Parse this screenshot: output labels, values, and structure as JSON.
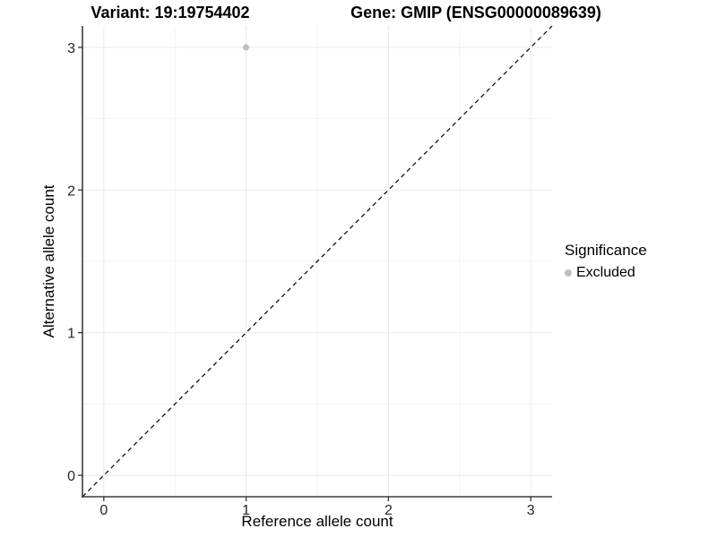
{
  "titles": {
    "variant": "Variant: 19:19754402",
    "gene": "Gene: GMIP (ENSG00000089639)"
  },
  "axes": {
    "x_label": "Reference allele count",
    "y_label": "Alternative allele count",
    "x_tick_labels": [
      "0",
      "1",
      "2",
      "3"
    ],
    "y_tick_labels": [
      "0",
      "1",
      "2",
      "3"
    ]
  },
  "legend": {
    "title": "Significance",
    "items": [
      {
        "label": "Excluded",
        "color": "#bdbdbd",
        "marker": "circle"
      }
    ]
  },
  "colors": {
    "background": "#ffffff",
    "axis_line": "#3c3c3c",
    "tick_mark": "#333333",
    "tick_text": "#262626",
    "grid_major": "#e8e8e8",
    "grid_minor": "#f3f3f3",
    "reference_line": "#000000",
    "point": "#bdbdbd"
  },
  "chart_data": {
    "type": "scatter",
    "title": "Variant: 19:19754402  |  Gene: GMIP (ENSG00000089639)",
    "xlabel": "Reference allele count",
    "ylabel": "Alternative allele count",
    "xlim": [
      -0.15,
      3.15
    ],
    "ylim": [
      -0.15,
      3.15
    ],
    "x_ticks": [
      0,
      1,
      2,
      3
    ],
    "y_ticks": [
      0,
      1,
      2,
      3
    ],
    "x_minor_ticks": [
      0.5,
      1.5,
      2.5
    ],
    "y_minor_ticks": [
      0.5,
      1.5,
      2.5
    ],
    "grid": true,
    "legend_title": "Significance",
    "legend_position": "right",
    "series": [
      {
        "name": "Excluded",
        "color": "#bdbdbd",
        "points": [
          {
            "x": 1,
            "y": 3
          }
        ]
      }
    ],
    "reference_line": {
      "kind": "identity",
      "dashed": true,
      "color": "#000000"
    }
  }
}
